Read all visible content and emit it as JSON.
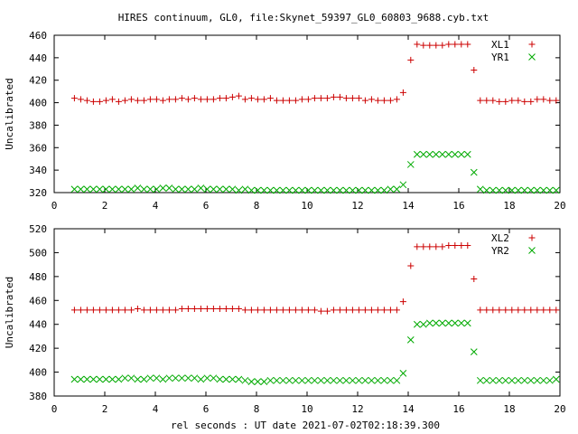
{
  "title": "HIRES continuum, GL0, file:Skynet_59397_GL0_60803_9688.cyb.txt",
  "xlabel": "rel seconds : UT date 2021-07-02T02:18:39.300",
  "colors": {
    "red": "#cc0000",
    "green": "#00aa00",
    "axis": "#000000",
    "grid": "#a0a0a0"
  },
  "chart_data": [
    {
      "type": "scatter",
      "ylabel": "Uncalibrated",
      "xlim": [
        0,
        20
      ],
      "ylim": [
        320,
        460
      ],
      "xticks": [
        "0",
        "2",
        "4",
        "6",
        "8",
        "10",
        "12",
        "14",
        "16",
        "18",
        "20"
      ],
      "yticks": [
        "320",
        "340",
        "360",
        "380",
        "400",
        "420",
        "440",
        "460"
      ],
      "legend_position": "top-right",
      "grid": false,
      "x": [
        0.8,
        1.05,
        1.3,
        1.55,
        1.8,
        2.05,
        2.3,
        2.55,
        2.8,
        3.05,
        3.3,
        3.55,
        3.8,
        4.05,
        4.3,
        4.55,
        4.8,
        5.05,
        5.3,
        5.55,
        5.8,
        6.05,
        6.3,
        6.55,
        6.8,
        7.05,
        7.3,
        7.55,
        7.8,
        8.05,
        8.3,
        8.55,
        8.8,
        9.05,
        9.3,
        9.55,
        9.8,
        10.05,
        10.3,
        10.55,
        10.8,
        11.05,
        11.3,
        11.55,
        11.8,
        12.05,
        12.3,
        12.55,
        12.8,
        13.05,
        13.3,
        13.55,
        13.8,
        14.1,
        14.35,
        14.6,
        14.85,
        15.1,
        15.35,
        15.6,
        15.85,
        16.1,
        16.35,
        16.6,
        16.85,
        17.1,
        17.35,
        17.6,
        17.85,
        18.1,
        18.35,
        18.6,
        18.85,
        19.1,
        19.35,
        19.6,
        19.85
      ],
      "series": [
        {
          "name": "XL1",
          "marker": "plus",
          "color": "#cc0000",
          "values": [
            404,
            403,
            402,
            401,
            401,
            402,
            403,
            401,
            402,
            403,
            402,
            402,
            403,
            403,
            402,
            403,
            403,
            404,
            403,
            404,
            403,
            403,
            403,
            404,
            404,
            405,
            406,
            403,
            404,
            403,
            403,
            404,
            402,
            402,
            402,
            402,
            403,
            403,
            404,
            404,
            404,
            405,
            405,
            404,
            404,
            404,
            402,
            403,
            402,
            402,
            402,
            403,
            409,
            438,
            452,
            451,
            451,
            451,
            451,
            452,
            452,
            452,
            452,
            429,
            402,
            402,
            402,
            401,
            401,
            402,
            402,
            401,
            401,
            403,
            403,
            402,
            402
          ]
        },
        {
          "name": "YR1",
          "marker": "cross",
          "color": "#00aa00",
          "values": [
            323,
            323,
            323,
            323,
            323,
            323,
            323,
            323,
            323,
            323,
            324,
            323,
            323,
            323,
            324,
            324,
            323,
            323,
            323,
            323,
            324,
            323,
            323,
            323,
            323,
            323,
            322,
            323,
            322,
            322,
            322,
            322,
            322,
            322,
            322,
            322,
            322,
            322,
            322,
            322,
            322,
            322,
            322,
            322,
            322,
            322,
            322,
            322,
            322,
            322,
            323,
            323,
            327,
            345,
            354,
            354,
            354,
            354,
            354,
            354,
            354,
            354,
            354,
            338,
            323,
            322,
            322,
            322,
            322,
            322,
            322,
            322,
            322,
            322,
            322,
            322,
            322
          ]
        }
      ]
    },
    {
      "type": "scatter",
      "ylabel": "Uncalibrated",
      "xlim": [
        0,
        20
      ],
      "ylim": [
        380,
        520
      ],
      "xticks": [
        "0",
        "2",
        "4",
        "6",
        "8",
        "10",
        "12",
        "14",
        "16",
        "18",
        "20"
      ],
      "yticks": [
        "380",
        "400",
        "420",
        "440",
        "460",
        "480",
        "500",
        "520"
      ],
      "legend_position": "top-right",
      "grid": false,
      "x": [
        0.8,
        1.05,
        1.3,
        1.55,
        1.8,
        2.05,
        2.3,
        2.55,
        2.8,
        3.05,
        3.3,
        3.55,
        3.8,
        4.05,
        4.3,
        4.55,
        4.8,
        5.05,
        5.3,
        5.55,
        5.8,
        6.05,
        6.3,
        6.55,
        6.8,
        7.05,
        7.3,
        7.55,
        7.8,
        8.05,
        8.3,
        8.55,
        8.8,
        9.05,
        9.3,
        9.55,
        9.8,
        10.05,
        10.3,
        10.55,
        10.8,
        11.05,
        11.3,
        11.55,
        11.8,
        12.05,
        12.3,
        12.55,
        12.8,
        13.05,
        13.3,
        13.55,
        13.8,
        14.1,
        14.35,
        14.6,
        14.85,
        15.1,
        15.35,
        15.6,
        15.85,
        16.1,
        16.35,
        16.6,
        16.85,
        17.1,
        17.35,
        17.6,
        17.85,
        18.1,
        18.35,
        18.6,
        18.85,
        19.1,
        19.35,
        19.6,
        19.85
      ],
      "series": [
        {
          "name": "XL2",
          "marker": "plus",
          "color": "#cc0000",
          "values": [
            452,
            452,
            452,
            452,
            452,
            452,
            452,
            452,
            452,
            452,
            453,
            452,
            452,
            452,
            452,
            452,
            452,
            453,
            453,
            453,
            453,
            453,
            453,
            453,
            453,
            453,
            453,
            452,
            452,
            452,
            452,
            452,
            452,
            452,
            452,
            452,
            452,
            452,
            452,
            451,
            451,
            452,
            452,
            452,
            452,
            452,
            452,
            452,
            452,
            452,
            452,
            452,
            459,
            489,
            505,
            505,
            505,
            505,
            505,
            506,
            506,
            506,
            506,
            478,
            452,
            452,
            452,
            452,
            452,
            452,
            452,
            452,
            452,
            452,
            452,
            452,
            452
          ]
        },
        {
          "name": "YR2",
          "marker": "cross",
          "color": "#00aa00",
          "values": [
            394,
            394,
            394,
            394,
            394,
            394,
            394,
            394,
            395,
            395,
            394,
            394,
            395,
            395,
            394,
            395,
            395,
            395,
            395,
            395,
            394,
            395,
            395,
            394,
            394,
            394,
            394,
            393,
            392,
            392,
            392,
            393,
            393,
            393,
            393,
            393,
            393,
            393,
            393,
            393,
            393,
            393,
            393,
            393,
            393,
            393,
            393,
            393,
            393,
            393,
            393,
            393,
            399,
            427,
            440,
            440,
            441,
            441,
            441,
            441,
            441,
            441,
            441,
            417,
            393,
            393,
            393,
            393,
            393,
            393,
            393,
            393,
            393,
            393,
            393,
            393,
            394
          ]
        }
      ]
    }
  ]
}
